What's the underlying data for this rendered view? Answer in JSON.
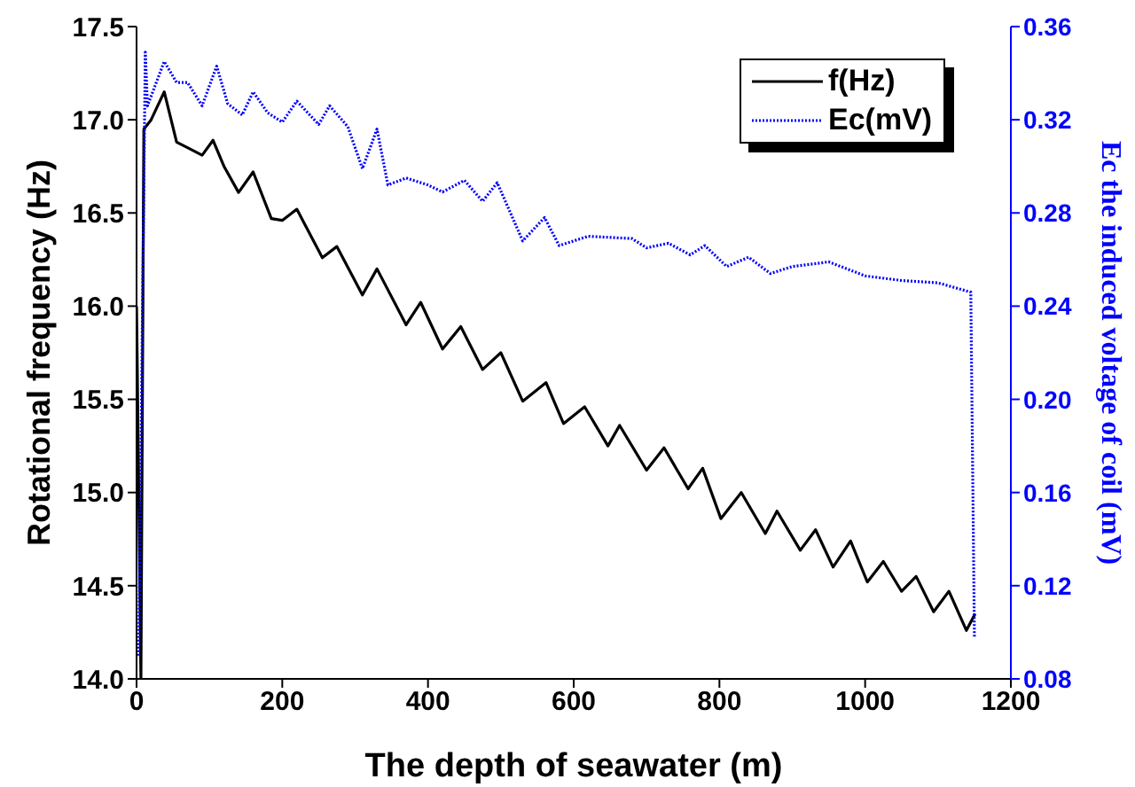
{
  "chart_data": {
    "type": "line",
    "xlabel": "The depth of seawater (m)",
    "ylabel": "Rotational frequency (Hz)",
    "y2label": "Ec the induced voltage of coil (mV)",
    "xlim": [
      0,
      1200
    ],
    "xticks": [
      0,
      200,
      400,
      600,
      800,
      1000,
      1200
    ],
    "ylim": [
      14.0,
      17.5
    ],
    "yticks": [
      {
        "value": 14,
        "label": "14.0"
      },
      {
        "value": 14.5,
        "label": "14.5"
      },
      {
        "value": 15,
        "label": "15.0"
      },
      {
        "value": 15.5,
        "label": "15.5"
      },
      {
        "value": 16,
        "label": "16.0"
      },
      {
        "value": 16.5,
        "label": "16.5"
      },
      {
        "value": 17,
        "label": "17.0"
      },
      {
        "value": 17.5,
        "label": "17.5"
      }
    ],
    "y2lim": [
      0.08,
      0.36
    ],
    "y2ticks": [
      {
        "value": 0.08,
        "label": "0.08"
      },
      {
        "value": 0.12,
        "label": "0.12"
      },
      {
        "value": 0.16,
        "label": "0.16"
      },
      {
        "value": 0.2,
        "label": "0.20"
      },
      {
        "value": 0.24,
        "label": "0.24"
      },
      {
        "value": 0.28,
        "label": "0.28"
      },
      {
        "value": 0.32,
        "label": "0.32"
      },
      {
        "value": 0.36,
        "label": "0.36"
      }
    ],
    "legend": "top right",
    "grid": false,
    "series": [
      {
        "name": "f(Hz)",
        "color": "#000000",
        "line_style": "solid",
        "x": [
          0,
          6,
          10,
          20,
          38,
          55,
          70,
          90,
          105,
          120,
          140,
          160,
          185,
          200,
          220,
          255,
          275,
          310,
          330,
          370,
          390,
          420,
          445,
          475,
          500,
          530,
          562,
          586,
          615,
          647,
          663,
          700,
          724,
          757,
          777,
          802,
          830,
          863,
          879,
          911,
          932,
          956,
          980,
          1003,
          1025,
          1050,
          1070,
          1094,
          1115,
          1139,
          1151
        ],
        "values": [
          16.0,
          14.0,
          16.95,
          17.0,
          17.15,
          16.88,
          16.85,
          16.81,
          16.89,
          16.75,
          16.61,
          16.72,
          16.47,
          16.46,
          16.52,
          16.26,
          16.32,
          16.06,
          16.2,
          15.9,
          16.02,
          15.77,
          15.89,
          15.66,
          15.75,
          15.49,
          15.59,
          15.37,
          15.46,
          15.25,
          15.36,
          15.12,
          15.24,
          15.02,
          15.13,
          14.86,
          15.0,
          14.78,
          14.9,
          14.69,
          14.8,
          14.6,
          14.74,
          14.52,
          14.63,
          14.47,
          14.55,
          14.36,
          14.47,
          14.26,
          14.35
        ]
      },
      {
        "name": "Ec(mV)",
        "color": "#0000ff",
        "axis": "y2",
        "line_style": "dotted",
        "x": [
          3,
          12,
          15,
          38,
          55,
          70,
          90,
          110,
          125,
          145,
          160,
          180,
          200,
          220,
          250,
          265,
          290,
          310,
          330,
          345,
          370,
          400,
          420,
          450,
          475,
          495,
          530,
          560,
          580,
          620,
          680,
          700,
          730,
          760,
          780,
          810,
          840,
          870,
          900,
          950,
          1000,
          1050,
          1100,
          1145,
          1150
        ],
        "values": [
          0.09,
          0.349,
          0.326,
          0.345,
          0.336,
          0.336,
          0.326,
          0.343,
          0.327,
          0.322,
          0.332,
          0.323,
          0.319,
          0.328,
          0.318,
          0.326,
          0.317,
          0.299,
          0.316,
          0.292,
          0.295,
          0.292,
          0.289,
          0.294,
          0.285,
          0.293,
          0.268,
          0.278,
          0.266,
          0.27,
          0.269,
          0.265,
          0.267,
          0.262,
          0.266,
          0.257,
          0.261,
          0.254,
          0.257,
          0.259,
          0.253,
          0.251,
          0.25,
          0.246,
          0.098
        ]
      }
    ]
  }
}
